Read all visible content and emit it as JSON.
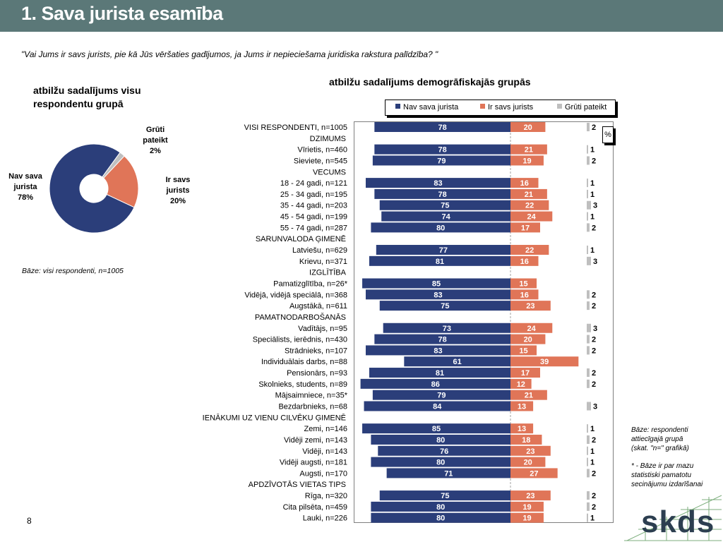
{
  "header": {
    "title": "1. Sava jurista esamība"
  },
  "question": "\"Vai Jums ir savs jurists, pie kā Jūs vēršaties gadījumos, ja Jums ir nepieciešama juridiska rakstura palīdzība? \"",
  "pie_panel": {
    "title_line1": "atbilžu sadalījums visu",
    "title_line2": "respondentu grupā",
    "base_note": "Bāze: visi respondenti, n=1005",
    "labels": [
      {
        "line1": "Nav sava",
        "line2": "jurista",
        "line3": "78%"
      },
      {
        "line1": "Ir savs",
        "line2": "jurists",
        "line3": "20%"
      },
      {
        "line1": "Grūti",
        "line2": "pateikt",
        "line3": "2%"
      }
    ]
  },
  "demo_panel": {
    "title": "atbilžu sadalījums demogrāfiskajās grupās",
    "unit_label": "%",
    "legend": [
      "Nav sava jurista",
      "Ir savs jurists",
      "Grūti pateikt"
    ]
  },
  "side_note": {
    "line1": "Bāze: respondenti",
    "line2": "attiecīgajā grupā",
    "line3": "(skat. \"n=\" grafikā)",
    "line4": "* - Bāze ir par mazu",
    "line5": "statistiski pamatotu",
    "line6": "secinājumu izdarīšanai"
  },
  "page_number": "8",
  "logo_text": "skds",
  "colors": {
    "nav": "#2b3e7a",
    "ir": "#e07558",
    "gruti": "#bfbfbf",
    "header": "#5b7878"
  },
  "chart_data": [
    {
      "type": "pie",
      "labels": [
        "Nav sava jurista",
        "Ir savs jurists",
        "Grūti pateikt"
      ],
      "values": [
        78,
        20,
        2
      ]
    },
    {
      "type": "bar",
      "orientation": "horizontal-diverging",
      "series_names": [
        "Nav sava jurista",
        "Ir savs jurists",
        "Grūti pateikt"
      ],
      "rows": [
        {
          "label": "VISI RESPONDENTI, n=1005",
          "nav": 78,
          "ir": 20,
          "gruti": 2
        },
        {
          "label": "DZIMUMS",
          "header": true
        },
        {
          "label": "Vīrietis, n=460",
          "nav": 78,
          "ir": 21,
          "gruti": 1
        },
        {
          "label": "Sieviete, n=545",
          "nav": 79,
          "ir": 19,
          "gruti": 2
        },
        {
          "label": "VECUMS",
          "header": true
        },
        {
          "label": "18 - 24 gadi, n=121",
          "nav": 83,
          "ir": 16,
          "gruti": 1
        },
        {
          "label": "25 - 34 gadi, n=195",
          "nav": 78,
          "ir": 21,
          "gruti": 1
        },
        {
          "label": "35 - 44 gadi, n=203",
          "nav": 75,
          "ir": 22,
          "gruti": 3
        },
        {
          "label": "45 - 54 gadi, n=199",
          "nav": 74,
          "ir": 24,
          "gruti": 1
        },
        {
          "label": "55 - 74 gadi, n=287",
          "nav": 80,
          "ir": 17,
          "gruti": 2
        },
        {
          "label": "SARUNVALODA ĢIMENĒ",
          "header": true
        },
        {
          "label": "Latviešu, n=629",
          "nav": 77,
          "ir": 22,
          "gruti": 1
        },
        {
          "label": "Krievu, n=371",
          "nav": 81,
          "ir": 16,
          "gruti": 3
        },
        {
          "label": "IZGLĪTĪBA",
          "header": true
        },
        {
          "label": "Pamatizglītība, n=26*",
          "nav": 85,
          "ir": 15,
          "gruti": null
        },
        {
          "label": "Vidējā, vidējā speciālā, n=368",
          "nav": 83,
          "ir": 16,
          "gruti": 2
        },
        {
          "label": "Augstākā, n=611",
          "nav": 75,
          "ir": 23,
          "gruti": 2
        },
        {
          "label": "PAMATNODARBOŠANĀS",
          "header": true
        },
        {
          "label": "Vadītājs, n=95",
          "nav": 73,
          "ir": 24,
          "gruti": 3
        },
        {
          "label": "Speciālists, ierēdnis, n=430",
          "nav": 78,
          "ir": 20,
          "gruti": 2
        },
        {
          "label": "Strādnieks, n=107",
          "nav": 83,
          "ir": 15,
          "gruti": 2
        },
        {
          "label": "Individuālais darbs, n=88",
          "nav": 61,
          "ir": 39,
          "gruti": null
        },
        {
          "label": "Pensionārs, n=93",
          "nav": 81,
          "ir": 17,
          "gruti": 2
        },
        {
          "label": "Skolnieks, students, n=89",
          "nav": 86,
          "ir": 12,
          "gruti": 2
        },
        {
          "label": "Mājsaimniece, n=35*",
          "nav": 79,
          "ir": 21,
          "gruti": null
        },
        {
          "label": "Bezdarbnieks, n=68",
          "nav": 84,
          "ir": 13,
          "gruti": 3
        },
        {
          "label": "IENĀKUMI UZ VIENU CILVĒKU ĢIMENĒ",
          "header": true
        },
        {
          "label": "Zemi, n=146",
          "nav": 85,
          "ir": 13,
          "gruti": 1
        },
        {
          "label": "Vidēji zemi, n=143",
          "nav": 80,
          "ir": 18,
          "gruti": 2
        },
        {
          "label": "Vidēji, n=143",
          "nav": 76,
          "ir": 23,
          "gruti": 1
        },
        {
          "label": "Vidēji augsti, n=181",
          "nav": 80,
          "ir": 20,
          "gruti": 1
        },
        {
          "label": "Augsti, n=170",
          "nav": 71,
          "ir": 27,
          "gruti": 2
        },
        {
          "label": "APDZĪVOTĀS VIETAS TIPS",
          "header": true
        },
        {
          "label": "Rīga, n=320",
          "nav": 75,
          "ir": 23,
          "gruti": 2
        },
        {
          "label": "Cita pilsēta, n=459",
          "nav": 80,
          "ir": 19,
          "gruti": 2
        },
        {
          "label": "Lauki, n=226",
          "nav": 80,
          "ir": 19,
          "gruti": 1
        }
      ]
    }
  ]
}
